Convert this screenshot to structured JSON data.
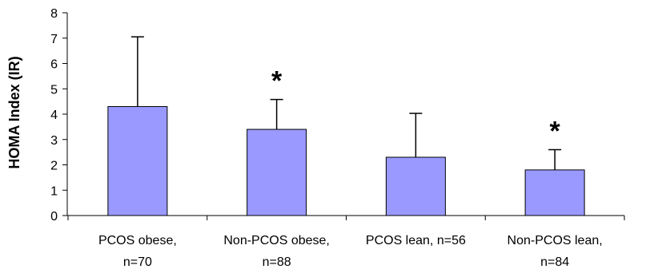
{
  "chart_data": {
    "type": "bar",
    "ylabel": "HOMA Index (IR)",
    "xlabel": "",
    "ylim": [
      0,
      8
    ],
    "yticks": [
      "0",
      "1",
      "2",
      "3",
      "4",
      "5",
      "6",
      "7",
      "8"
    ],
    "categories": [
      {
        "line1": "PCOS obese,",
        "line2": "n=70"
      },
      {
        "line1": "Non-PCOS obese,",
        "line2": "n=88"
      },
      {
        "line1": "PCOS lean, n=56",
        "line2": ""
      },
      {
        "line1": "Non-PCOS lean,",
        "line2": "n=84"
      }
    ],
    "values": [
      4.3,
      3.4,
      2.3,
      1.8
    ],
    "error_upper": [
      7.05,
      4.58,
      4.03,
      2.6
    ],
    "annotations": [
      "",
      "*",
      "",
      "*"
    ],
    "bar_color": "#9999ff",
    "legend": "none",
    "grid": false
  }
}
